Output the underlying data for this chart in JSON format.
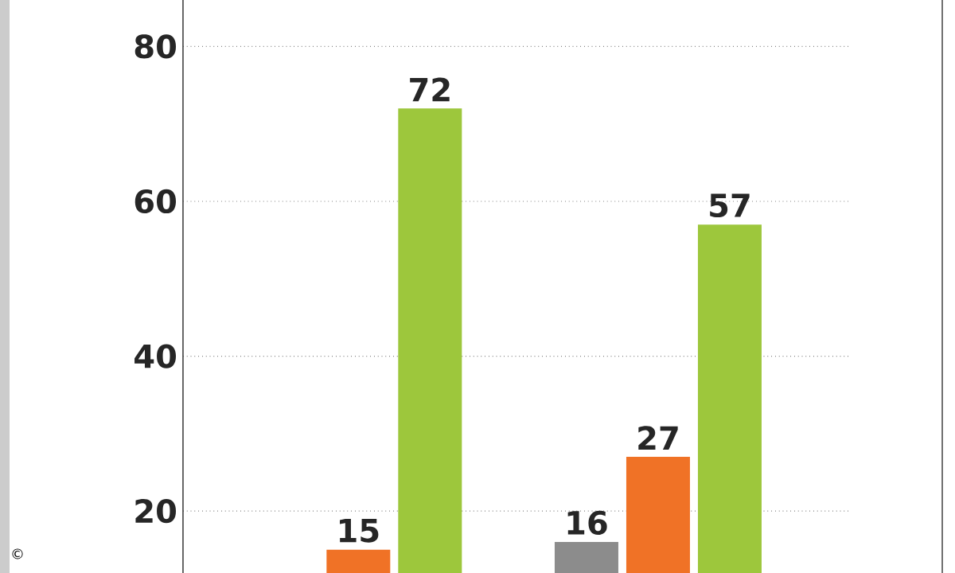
{
  "chart_data": {
    "type": "bar",
    "categories": [
      null,
      null
    ],
    "series": [
      {
        "color": "#8c8c8c",
        "values": [
          null,
          16
        ]
      },
      {
        "color": "#f07226",
        "values": [
          15,
          27
        ]
      },
      {
        "color": "#9dc73c",
        "values": [
          72,
          57
        ]
      }
    ],
    "ylim": [
      12,
      86
    ],
    "yticks": [
      20,
      40,
      60,
      80
    ],
    "grid": "y",
    "data_labels": true,
    "annotations": [
      "©"
    ]
  }
}
